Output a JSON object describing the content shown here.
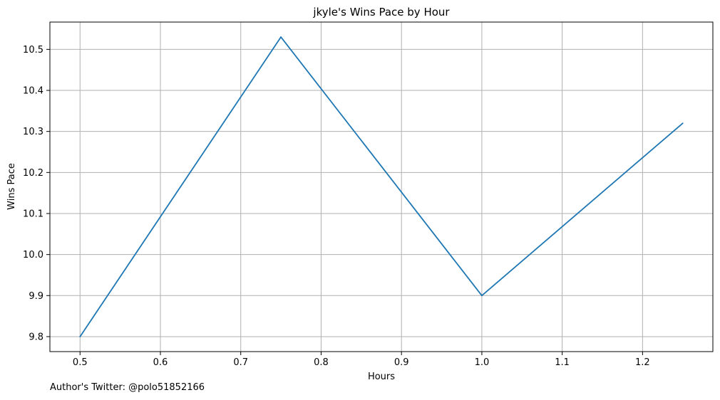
{
  "chart_data": {
    "type": "line",
    "title": "jkyle's Wins Pace by Hour",
    "xlabel": "Hours",
    "ylabel": "Wins Pace",
    "x": [
      0.5,
      0.75,
      1.0,
      1.25
    ],
    "series": [
      {
        "values": [
          9.8,
          10.53,
          9.9,
          10.32
        ],
        "color": "#1f77b4"
      }
    ],
    "xlim": [
      0.4625,
      1.2875
    ],
    "ylim": [
      9.7635,
      10.5665
    ],
    "xticks": [
      "0.5",
      "0.6",
      "0.7",
      "0.8",
      "0.9",
      "1.0",
      "1.1",
      "1.2"
    ],
    "yticks": [
      "9.8",
      "9.9",
      "10.0",
      "10.1",
      "10.2",
      "10.3",
      "10.4",
      "10.5"
    ],
    "grid": true,
    "grid_color": "#b0b0b0"
  },
  "footer": {
    "note": "Author's Twitter: @polo51852166"
  }
}
